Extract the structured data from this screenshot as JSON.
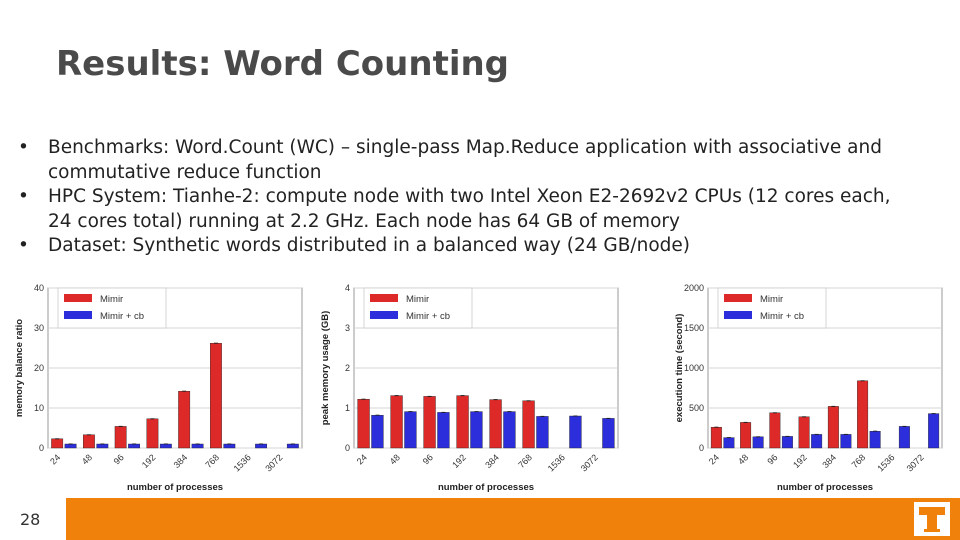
{
  "slide": {
    "title": "Results: Word Counting",
    "bullets": [
      "Benchmarks: Word.Count (WC) – single-pass Map.Reduce application with associative and commutative reduce function",
      "HPC System: Tianhe-2: compute node with two Intel Xeon E2-2692v2 CPUs (12 cores each, 24 cores total) running at 2.2 GHz. Each node has 64 GB of memory",
      "Dataset: Synthetic words distributed in a balanced way (24 GB/node)"
    ],
    "bullet_marker": "•",
    "page_number": "28",
    "logo": "university-of-tennessee-power-t-logo"
  },
  "colors": {
    "mimir": "#dd2a28",
    "mimir_cb": "#2c2edb",
    "footer": "#f0820b",
    "logo": "#f0820b"
  },
  "chart_data": [
    {
      "type": "bar",
      "categories": [
        "24",
        "48",
        "96",
        "192",
        "384",
        "768",
        "1536",
        "3072"
      ],
      "series": [
        {
          "name": "Mimir",
          "values": [
            2.3,
            3.3,
            5.4,
            7.3,
            14.2,
            26.2,
            null,
            null
          ]
        },
        {
          "name": "Mimir + cb",
          "values": [
            1.0,
            1.0,
            1.0,
            1.0,
            1.0,
            1.0,
            1.0,
            1.0
          ]
        }
      ],
      "xlabel": "number of processes",
      "ylabel": "memory balance ratio",
      "ylim": [
        0,
        40
      ],
      "yticks": [
        0,
        10,
        20,
        30,
        40
      ],
      "legend": "top-left",
      "grid": true
    },
    {
      "type": "bar",
      "categories": [
        "24",
        "48",
        "96",
        "192",
        "384",
        "768",
        "1536",
        "3072"
      ],
      "series": [
        {
          "name": "Mimir",
          "values": [
            1.22,
            1.31,
            1.29,
            1.31,
            1.21,
            1.18,
            null,
            null
          ]
        },
        {
          "name": "Mimir + cb",
          "values": [
            0.82,
            0.91,
            0.89,
            0.91,
            0.91,
            0.79,
            0.8,
            0.74
          ]
        }
      ],
      "xlabel": "number of processes",
      "ylabel": "peak memory usage (GB)",
      "ylim": [
        0,
        4
      ],
      "yticks": [
        0,
        1,
        2,
        3,
        4
      ],
      "legend": "top-left",
      "grid": true
    },
    {
      "type": "bar",
      "categories": [
        "24",
        "48",
        "96",
        "192",
        "384",
        "768",
        "1536",
        "3072"
      ],
      "series": [
        {
          "name": "Mimir",
          "values": [
            260,
            320,
            440,
            390,
            520,
            840,
            null,
            null
          ]
        },
        {
          "name": "Mimir + cb",
          "values": [
            130,
            140,
            145,
            170,
            170,
            210,
            270,
            430
          ]
        }
      ],
      "xlabel": "number of processes",
      "ylabel": "execution time (second)",
      "ylim": [
        0,
        2000
      ],
      "yticks": [
        0,
        500,
        1000,
        1500,
        2000
      ],
      "legend": "top-right",
      "grid": true
    }
  ]
}
